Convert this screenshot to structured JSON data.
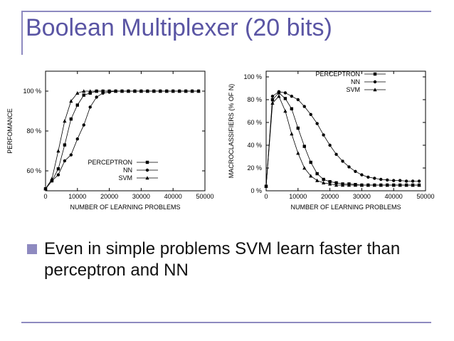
{
  "slide": {
    "title": "Boolean Multiplexer (20 bits)",
    "bullet": "Even in simple problems SVM learn faster than perceptron and NN",
    "rule_color": "#8e8ac0",
    "title_color": "#5a55a4"
  },
  "chart_data": [
    {
      "type": "line",
      "xlabel": "NUMBER OF LEARNING PROBLEMS",
      "ylabel": "PERFOMANCE",
      "xlim": [
        0,
        50000
      ],
      "ylim": [
        50,
        110
      ],
      "xticks": [
        0,
        10000,
        20000,
        30000,
        40000,
        50000
      ],
      "xtick_labels": [
        "0",
        "10000",
        "20000",
        "30000",
        "40000",
        "50000"
      ],
      "yticks": [
        60,
        80,
        100
      ],
      "ytick_labels": [
        "60 %",
        "80 %",
        "100 %"
      ],
      "legend_position": "bottom-right",
      "series": [
        {
          "name": "PERCEPTRON",
          "marker": "square",
          "x": [
            0,
            2000,
            4000,
            6000,
            8000,
            10000,
            12000,
            14000,
            16000,
            18000,
            20000,
            22000,
            24000,
            26000,
            28000,
            30000,
            32000,
            34000,
            36000,
            38000,
            40000,
            42000,
            44000,
            46000,
            48000
          ],
          "y": [
            51,
            55,
            61,
            73,
            86,
            93,
            98,
            99,
            100,
            100,
            100,
            100,
            100,
            100,
            100,
            100,
            100,
            100,
            100,
            100,
            100,
            100,
            100,
            100,
            100
          ]
        },
        {
          "name": "NN",
          "marker": "circle",
          "x": [
            0,
            2000,
            4000,
            6000,
            8000,
            10000,
            12000,
            14000,
            16000,
            18000,
            20000,
            22000,
            24000,
            26000,
            28000,
            30000,
            32000,
            34000,
            36000,
            38000,
            40000,
            42000,
            44000,
            46000,
            48000
          ],
          "y": [
            51,
            55,
            58,
            65,
            68,
            76,
            83,
            92,
            97,
            99,
            99.5,
            100,
            100,
            100,
            100,
            100,
            100,
            100,
            100,
            100,
            100,
            100,
            100,
            100,
            100
          ]
        },
        {
          "name": "SVM",
          "marker": "triangle",
          "x": [
            0,
            2000,
            4000,
            6000,
            8000,
            10000,
            12000,
            14000,
            16000,
            18000,
            20000,
            22000,
            24000,
            26000,
            28000,
            30000,
            32000,
            34000,
            36000,
            38000,
            40000,
            42000,
            44000,
            46000,
            48000
          ],
          "y": [
            51,
            56,
            70,
            85,
            95,
            99,
            100,
            100,
            100,
            100,
            100,
            100,
            100,
            100,
            100,
            100,
            100,
            100,
            100,
            100,
            100,
            100,
            100,
            100,
            100
          ]
        }
      ]
    },
    {
      "type": "line",
      "xlabel": "NUMBER OF LEARNING PROBLEMS",
      "ylabel": "MACROCLASSIFIERS (% OF N)",
      "xlim": [
        0,
        50000
      ],
      "ylim": [
        0,
        105
      ],
      "xticks": [
        0,
        10000,
        20000,
        30000,
        40000,
        50000
      ],
      "xtick_labels": [
        "0",
        "10000",
        "20000",
        "30000",
        "40000",
        "50000"
      ],
      "yticks": [
        0,
        20,
        40,
        60,
        80,
        100
      ],
      "ytick_labels": [
        "0 %",
        "20 %",
        "40 %",
        "60 %",
        "80 %",
        "100 %"
      ],
      "legend_position": "top-right",
      "series": [
        {
          "name": "PERCEPTRON",
          "marker": "square",
          "x": [
            0,
            2000,
            4000,
            6000,
            8000,
            10000,
            12000,
            14000,
            16000,
            18000,
            20000,
            22000,
            24000,
            26000,
            28000,
            30000,
            32000,
            34000,
            36000,
            38000,
            40000,
            42000,
            44000,
            46000,
            48000
          ],
          "y": [
            4,
            80,
            86,
            81,
            72,
            55,
            39,
            25,
            15,
            10,
            8,
            7,
            6,
            6,
            5.5,
            5,
            5,
            5,
            5,
            5,
            5,
            5,
            5,
            5,
            5
          ]
        },
        {
          "name": "NN",
          "marker": "circle",
          "x": [
            0,
            2000,
            4000,
            6000,
            8000,
            10000,
            12000,
            14000,
            16000,
            18000,
            20000,
            22000,
            24000,
            26000,
            28000,
            30000,
            32000,
            34000,
            36000,
            38000,
            40000,
            42000,
            44000,
            46000,
            48000
          ],
          "y": [
            4,
            83,
            87,
            86,
            83,
            80,
            74,
            67,
            59,
            49,
            40,
            32,
            26,
            21,
            17,
            14,
            12,
            11,
            10,
            9.5,
            9,
            9,
            8.5,
            8.5,
            8.5
          ]
        },
        {
          "name": "SVM",
          "marker": "triangle",
          "x": [
            0,
            2000,
            4000,
            6000,
            8000,
            10000,
            12000,
            14000,
            16000,
            18000,
            20000,
            22000,
            24000,
            26000,
            28000,
            30000,
            32000,
            34000,
            36000,
            38000,
            40000,
            42000,
            44000,
            46000,
            48000
          ],
          "y": [
            4,
            77,
            83,
            70,
            50,
            33,
            20,
            13,
            9,
            7,
            6,
            5,
            5,
            5,
            5,
            5,
            5,
            5,
            5,
            5,
            5,
            5,
            5,
            5,
            5
          ]
        }
      ]
    }
  ]
}
